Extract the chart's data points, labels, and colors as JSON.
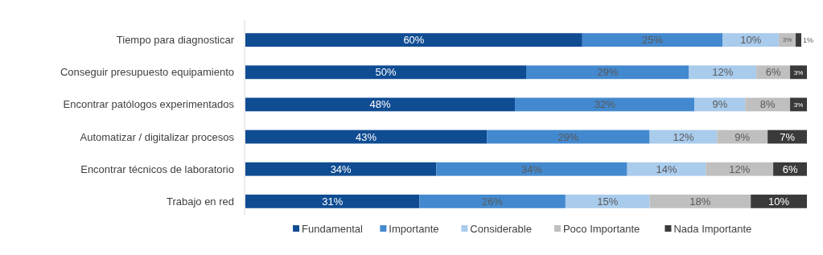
{
  "chart_data": {
    "type": "bar",
    "orientation": "horizontal",
    "stacked": true,
    "legend": "bottom",
    "categories": [
      "Tiempo para diagnosticar",
      "Conseguir presupuesto equipamiento",
      "Encontrar patólogos experimentados",
      "Automatizar / digitalizar procesos",
      "Encontrar técnicos de laboratorio",
      "Trabajo en red"
    ],
    "series": [
      {
        "name": "Fundamental",
        "color": "#0f4c92",
        "values": [
          60,
          50,
          48,
          43,
          34,
          31
        ],
        "value_labels": [
          "60%",
          "50%",
          "48%",
          "43%",
          "34%",
          "31%"
        ]
      },
      {
        "name": "Importante",
        "color": "#4389cf",
        "values": [
          25,
          29,
          32,
          29,
          34,
          26
        ],
        "value_labels": [
          "25%",
          "29%",
          "32%",
          "29%",
          "34%",
          "26%"
        ]
      },
      {
        "name": "Considerable",
        "color": "#a9cbec",
        "values": [
          10,
          12,
          9,
          12,
          14,
          15
        ],
        "value_labels": [
          "10%",
          "12%",
          "9%",
          "12%",
          "14%",
          "15%"
        ]
      },
      {
        "name": "Poco Importante",
        "color": "#bfbfbf",
        "values": [
          3,
          6,
          8,
          9,
          12,
          18
        ],
        "value_labels": [
          "3%",
          "6%",
          "8%",
          "9%",
          "12%",
          "18%"
        ]
      },
      {
        "name": "Nada Importante",
        "color": "#3a3a3a",
        "values": [
          1,
          3,
          3,
          7,
          6,
          10
        ],
        "value_labels": [
          "1%",
          "3%",
          "3%",
          "7%",
          "6%",
          "10%"
        ]
      }
    ]
  }
}
